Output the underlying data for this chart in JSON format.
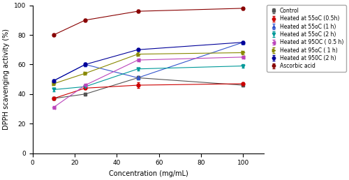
{
  "x": [
    10,
    25,
    50,
    100
  ],
  "series": [
    {
      "label": "Control",
      "color": "#555555",
      "marker": "s",
      "values": [
        37,
        40,
        51,
        46
      ],
      "yerr": [
        1.0,
        1.0,
        1.0,
        1.0
      ]
    },
    {
      "label": "Heated at 55oC (0.5h)",
      "color": "#cc0000",
      "marker": "o",
      "values": [
        37,
        44,
        46,
        47
      ],
      "yerr": [
        1.0,
        1.0,
        2.0,
        1.0
      ]
    },
    {
      "label": "Heated at 55oC (1 h)",
      "color": "#3355cc",
      "marker": "^",
      "values": [
        49,
        60,
        51,
        75
      ],
      "yerr": [
        1.0,
        1.0,
        1.0,
        1.0
      ]
    },
    {
      "label": "Heated at 55oC (2 h)",
      "color": "#009999",
      "marker": "v",
      "values": [
        43,
        45,
        57,
        59
      ],
      "yerr": [
        1.0,
        1.0,
        1.0,
        1.0
      ]
    },
    {
      "label": "Heated at 95OC ( 0.5 h)",
      "color": "#bb44bb",
      "marker": "<",
      "values": [
        31,
        46,
        63,
        65
      ],
      "yerr": [
        1.0,
        1.0,
        1.0,
        1.0
      ]
    },
    {
      "label": "Heated at 95oC ( 1 h)",
      "color": "#888800",
      "marker": ">",
      "values": [
        47,
        54,
        67,
        68
      ],
      "yerr": [
        1.0,
        1.0,
        1.0,
        1.0
      ]
    },
    {
      "label": "Heated at 950C (2 h)",
      "color": "#000099",
      "marker": "o",
      "values": [
        49,
        60,
        70,
        75
      ],
      "yerr": [
        1.0,
        1.0,
        1.0,
        1.0
      ]
    },
    {
      "label": "Ascorbic acid",
      "color": "#880000",
      "marker": "o",
      "values": [
        80,
        90,
        96,
        98
      ],
      "yerr": [
        1.0,
        0.8,
        0.8,
        0.8
      ]
    }
  ],
  "xlabel": "Concentration (mg/mL)",
  "ylabel": "DPPH scavenging activity (%)",
  "xlim": [
    0,
    110
  ],
  "ylim": [
    0,
    100
  ],
  "xticks": [
    0,
    20,
    40,
    60,
    80,
    100
  ],
  "yticks": [
    0,
    20,
    40,
    60,
    80,
    100
  ],
  "legend_fontsize": 5.5,
  "axis_fontsize": 7,
  "tick_fontsize": 6.5
}
